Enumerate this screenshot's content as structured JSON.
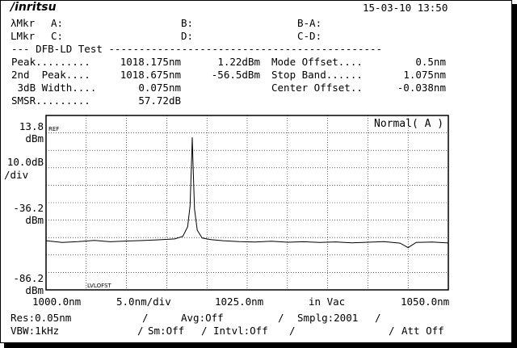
{
  "header": {
    "brand": "/inritsu",
    "datetime": "15-03-10 13:50"
  },
  "markers": {
    "lambda_label": "λMkr",
    "a": "A:",
    "b": "B:",
    "b_minus_a": "B-A:",
    "level_label": "LMkr",
    "c": "C:",
    "d": "D:",
    "c_minus_d": "C-D:"
  },
  "test": {
    "title": "--- DFB-LD Test ---------------------------------------------",
    "rows": [
      {
        "label": "Peak.........",
        "value1": "1018.175nm",
        "value2": "1.22dBm",
        "param": "Mode Offset....",
        "param_value": "0.5nm"
      },
      {
        "label": "2nd  Peak....",
        "value1": "1018.675nm",
        "value2": "-56.5dBm",
        "param": "Stop Band......",
        "param_value": "1.075nm"
      },
      {
        "label": " 3dB Width....",
        "value1": "0.075nm",
        "value2": "",
        "param": "Center Offset..",
        "param_value": "-0.038nm"
      },
      {
        "label": "SMSR.........",
        "value1": "57.72dB",
        "value2": "",
        "param": "",
        "param_value": ""
      }
    ]
  },
  "graph": {
    "mode": "Normal( A )",
    "ref_tag": "REF",
    "lvl_tag": "LVLOFST",
    "y_top": "13.8",
    "y_top_unit": "dBm",
    "y_scale": "10.0dB",
    "y_scale_unit": "/div",
    "y_mid": "-36.2",
    "y_mid_unit": "dBm",
    "y_bottom": "-86.2",
    "y_bottom_unit": "dBm",
    "x_start": "1000.0nm",
    "x_scale": "5.0nm/div",
    "x_center": "1025.0nm",
    "x_medium": "in Vac",
    "x_end": "1050.0nm"
  },
  "settings": {
    "res": "Res:0.05nm",
    "avg": "Avg:Off",
    "smplg": "Smplg:2001",
    "vbw": "VBW:1kHz",
    "sm": "Sm:Off",
    "intvl": "Intvl:Off",
    "att": "Att Off",
    "sep": "/"
  },
  "chart_data": {
    "type": "line",
    "xlim": [
      1000.0,
      1050.0
    ],
    "ylim": [
      -86.2,
      13.8
    ],
    "x_unit": "nm",
    "y_unit": "dBm",
    "series": [
      {
        "x": [
          1000.0,
          1002.0,
          1004.0,
          1006.0,
          1008.0,
          1010.0,
          1012.0,
          1014.0,
          1016.0,
          1017.0,
          1017.6,
          1017.9,
          1018.1,
          1018.175,
          1018.25,
          1018.45,
          1018.8,
          1019.4,
          1020.5,
          1022.0,
          1024.0,
          1026.0,
          1028.0,
          1030.0,
          1032.0,
          1034.0,
          1036.0,
          1038.0,
          1040.0,
          1042.0,
          1044.0,
          1045.0,
          1046.0,
          1048.0,
          1050.0
        ],
        "y": [
          -58.0,
          -59.0,
          -58.5,
          -57.8,
          -58.6,
          -58.2,
          -57.9,
          -57.5,
          -57.0,
          -55.5,
          -50.0,
          -38.0,
          -10.0,
          1.22,
          -12.0,
          -40.0,
          -52.0,
          -56.5,
          -57.4,
          -58.0,
          -58.5,
          -58.8,
          -58.3,
          -58.9,
          -58.6,
          -59.0,
          -58.7,
          -59.2,
          -58.9,
          -58.5,
          -59.4,
          -62.0,
          -59.0,
          -58.8,
          -59.3
        ]
      }
    ]
  }
}
